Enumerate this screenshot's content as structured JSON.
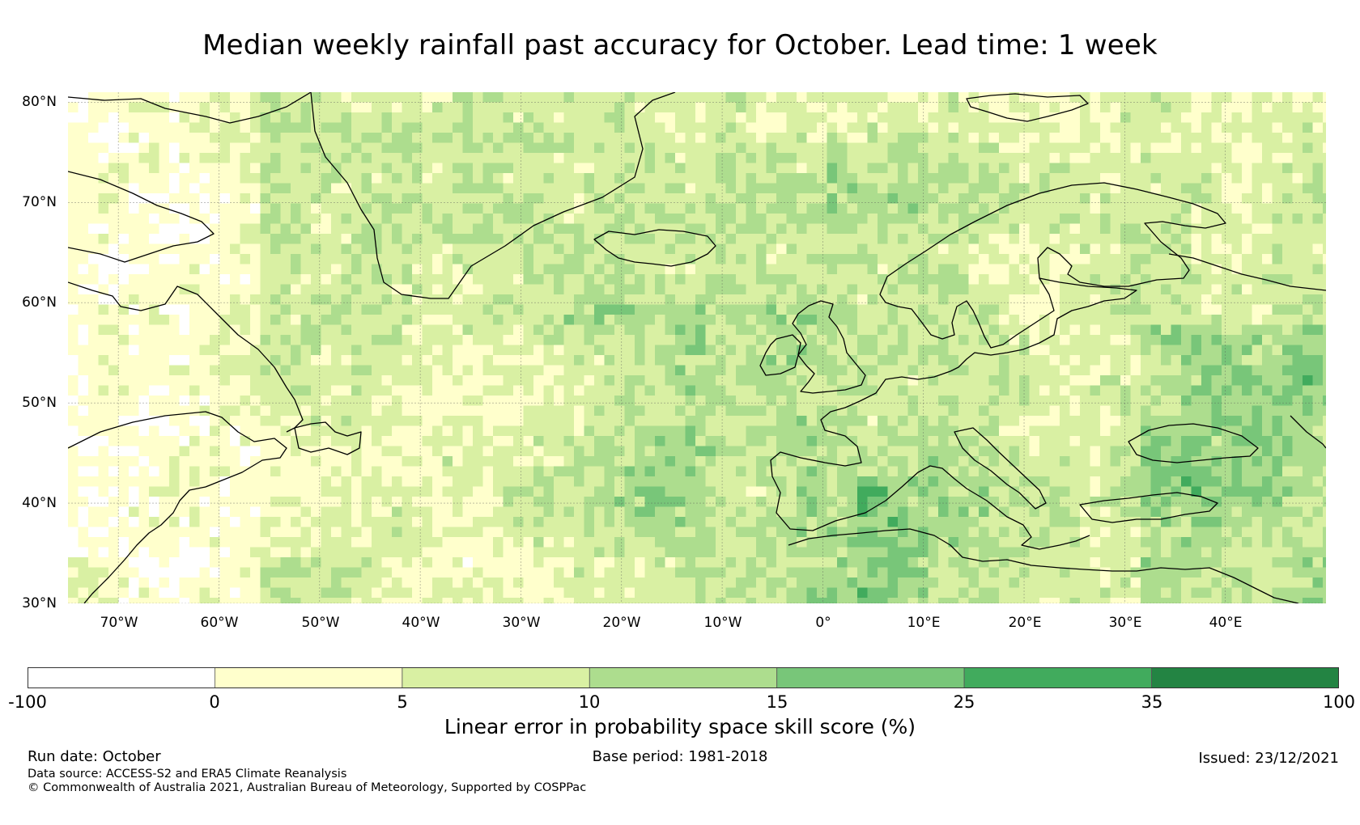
{
  "title": "Median weekly rainfall past accuracy for October. Lead time: 1 week",
  "map": {
    "lat_labels": [
      "80°N",
      "70°N",
      "60°N",
      "50°N",
      "40°N",
      "30°N"
    ],
    "lon_labels": [
      "70°W",
      "60°W",
      "50°W",
      "40°W",
      "30°W",
      "20°W",
      "10°W",
      "0°",
      "10°E",
      "20°E",
      "30°E",
      "40°E"
    ],
    "lat_range": [
      30,
      81
    ],
    "lon_range": [
      -75,
      50
    ]
  },
  "colorbar": {
    "ticks": [
      "-100",
      "0",
      "5",
      "10",
      "15",
      "25",
      "35",
      "100"
    ],
    "colors": [
      "#ffffff",
      "#ffffcc",
      "#d9f0a3",
      "#addd8e",
      "#78c679",
      "#41ab5d",
      "#238443"
    ],
    "label": "Linear error in probability space skill score (%)"
  },
  "footer": {
    "run_date": "Run date: October",
    "base_period": "Base period: 1981-2018",
    "issued": "Issued: 23/12/2021",
    "data_source": "Data source: ACCESS-S2 and ERA5 Climate Reanalysis",
    "copyright": "© Commonwealth of Australia 2021, Australian Bureau of Meteorology, Supported by COSPPac"
  }
}
